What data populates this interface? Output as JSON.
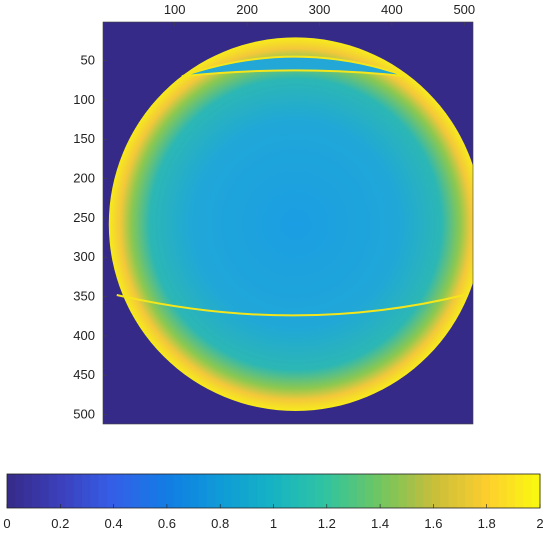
{
  "chart_data": {
    "type": "heatmap",
    "x_ticks": [
      100,
      200,
      300,
      400,
      500
    ],
    "y_ticks": [
      50,
      100,
      150,
      200,
      250,
      300,
      350,
      400,
      450,
      500
    ],
    "xlim": [
      1,
      512
    ],
    "ylim": [
      1,
      512
    ],
    "x_axis_location": "top",
    "y_axis_direction": "reverse",
    "colormap": "parula",
    "clim": [
      0,
      2
    ],
    "colorbar": {
      "location": "bottom",
      "ticks": [
        "0",
        "0.2",
        "0.4",
        "0.6",
        "0.8",
        "1",
        "1.2",
        "1.4",
        "1.6",
        "1.8",
        "2"
      ]
    },
    "background_value": 0,
    "field": {
      "center": [
        267,
        258
      ],
      "radius": 258,
      "interior_value": 0.95,
      "rim_value": 1.85
    },
    "colors": {
      "low": "#3b2b9e",
      "mid": "#1ea0e0",
      "high": "#f5e61c"
    }
  }
}
